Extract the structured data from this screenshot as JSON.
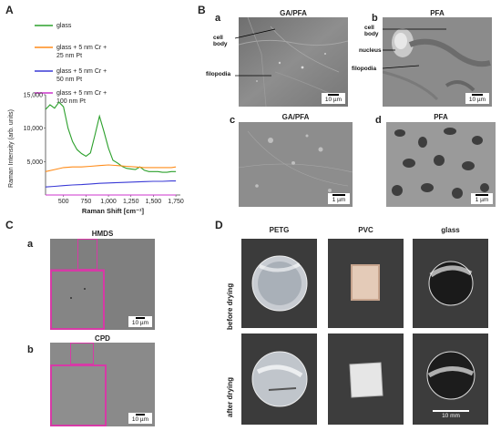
{
  "panels": {
    "A": {
      "label": "A"
    },
    "B": {
      "label": "B",
      "a": {
        "label": "a",
        "title": "GA/PFA",
        "annotations": [
          "cell body",
          "filopodia"
        ],
        "scale": "10 µm"
      },
      "b": {
        "label": "b",
        "title": "PFA",
        "annotations": [
          "cell body",
          "nucleus",
          "filopodia"
        ],
        "scale": "10 µm"
      },
      "c": {
        "label": "c",
        "title": "GA/PFA",
        "scale": "1 µm"
      },
      "d": {
        "label": "d",
        "title": "PFA",
        "scale": "1 µm"
      }
    },
    "C": {
      "label": "C",
      "a": {
        "label": "a",
        "title": "HMDS",
        "scale": "10 µm"
      },
      "b": {
        "label": "b",
        "title": "CPD",
        "scale": "10 µm"
      }
    },
    "D": {
      "label": "D",
      "columns": [
        "PETG",
        "PVC",
        "glass"
      ],
      "rows": [
        "before drying",
        "after drying"
      ],
      "scale": "10 mm"
    }
  },
  "colors": {
    "glass": "#2ca02c",
    "pt25": "#ff8c1a",
    "pt50": "#3a3ad6",
    "pt100": "#cc33cc",
    "magenta_box": "#d63aa6"
  },
  "chart_data": {
    "type": "line",
    "xlabel": "Raman Shift [cm⁻¹]",
    "ylabel": "Raman Intensity (arb. units)",
    "xlim": [
      300,
      1800
    ],
    "ylim": [
      0,
      15000
    ],
    "xticks": [
      "500",
      "750",
      "1,000",
      "1,250",
      "1,500",
      "1,750"
    ],
    "yticks": [
      "5,000",
      "10,000",
      "15,000"
    ],
    "legend": "top-left",
    "grid": false,
    "series": [
      {
        "name": "glass",
        "color": "#2ca02c",
        "x": [
          300,
          350,
          400,
          450,
          500,
          550,
          600,
          650,
          700,
          750,
          800,
          850,
          900,
          950,
          1000,
          1050,
          1100,
          1150,
          1200,
          1250,
          1300,
          1350,
          1400,
          1450,
          1500,
          1550,
          1600,
          1650,
          1700,
          1750
        ],
        "y": [
          12800,
          13500,
          13000,
          13900,
          13200,
          10000,
          8000,
          6800,
          6200,
          5800,
          6300,
          9000,
          11800,
          9500,
          7000,
          5200,
          4800,
          4300,
          4000,
          3900,
          3800,
          4200,
          3700,
          3500,
          3500,
          3500,
          3400,
          3400,
          3500,
          3500
        ]
      },
      {
        "name": "glass + 5 nm Cr + 25 nm Pt",
        "color": "#ff8c1a",
        "x": [
          300,
          400,
          500,
          600,
          700,
          800,
          900,
          1000,
          1100,
          1200,
          1300,
          1400,
          1500,
          1600,
          1700,
          1750
        ],
        "y": [
          3500,
          3800,
          4100,
          4200,
          4200,
          4300,
          4400,
          4500,
          4400,
          4300,
          4200,
          4100,
          4100,
          4100,
          4100,
          4200
        ]
      },
      {
        "name": "glass + 5 nm Cr + 50 nm Pt",
        "color": "#3a3ad6",
        "x": [
          300,
          400,
          500,
          600,
          700,
          800,
          900,
          1000,
          1100,
          1200,
          1300,
          1400,
          1500,
          1600,
          1700,
          1750
        ],
        "y": [
          1200,
          1300,
          1400,
          1500,
          1550,
          1650,
          1750,
          1800,
          1850,
          1900,
          1950,
          2000,
          2050,
          2050,
          2100,
          2100
        ]
      },
      {
        "name": "glass + 5 nm Cr + 100 nm Pt",
        "color": "#cc33cc",
        "x": [
          300,
          1750
        ],
        "y": [
          0,
          0
        ]
      }
    ]
  }
}
